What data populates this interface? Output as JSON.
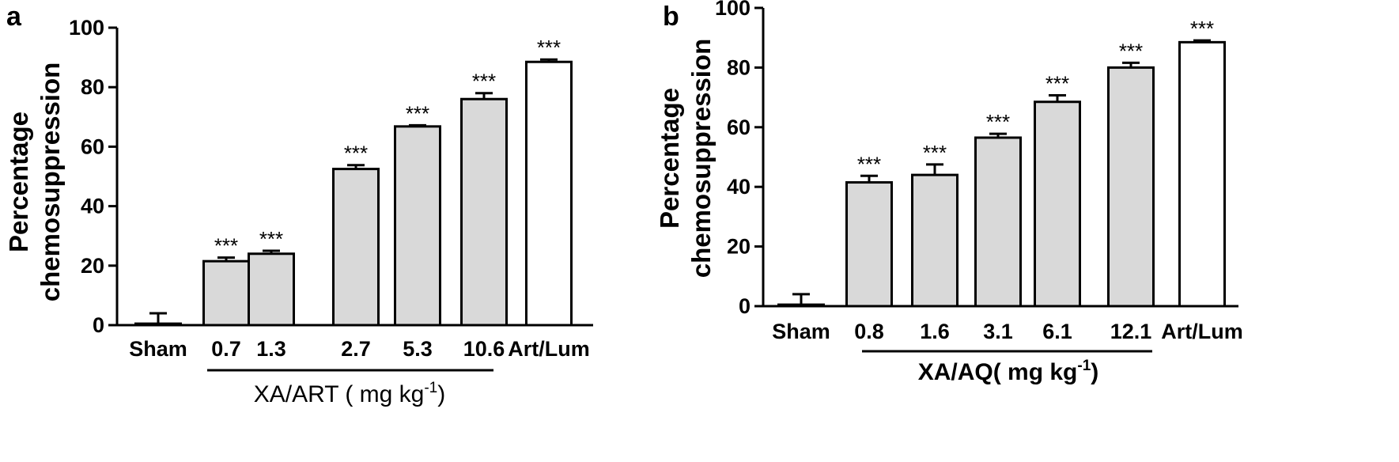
{
  "chart_data": [
    {
      "type": "bar",
      "panel_label": "a",
      "ylabel_line1": "Percentage",
      "ylabel_line2": "chemosuppression",
      "ylim": [
        0,
        100
      ],
      "yticks": [
        0,
        20,
        40,
        60,
        80,
        100
      ],
      "categories": [
        "Sham",
        "0.7",
        "1.3",
        "2.7",
        "5.3",
        "10.6",
        "Art/Lum"
      ],
      "values": [
        0.5,
        21.5,
        24,
        52.5,
        66.8,
        76,
        88.5
      ],
      "errors": [
        3.5,
        1.2,
        1.0,
        1.3,
        0.4,
        2.0,
        0.8
      ],
      "significance": [
        "",
        "***",
        "***",
        "***",
        "***",
        "***",
        "***"
      ],
      "bar_colors": [
        "#ffffff",
        "#d9d9d9",
        "#d9d9d9",
        "#d9d9d9",
        "#d9d9d9",
        "#d9d9d9",
        "#ffffff"
      ],
      "group_label_main": "XA/ART ( mg kg",
      "group_label_sup": "-1",
      "group_label_end": ")"
    },
    {
      "type": "bar",
      "panel_label": "b",
      "ylabel_line1": "Percentage",
      "ylabel_line2": "chemosuppression",
      "ylim": [
        0,
        100
      ],
      "yticks": [
        0,
        20,
        40,
        60,
        80,
        100
      ],
      "categories": [
        "Sham",
        "0.8",
        "1.6",
        "3.1",
        "6.1",
        "12.1",
        "Art/Lum"
      ],
      "values": [
        0.5,
        41.5,
        44,
        56.5,
        68.5,
        80,
        88.5
      ],
      "errors": [
        3.5,
        2.2,
        3.5,
        1.3,
        2.2,
        1.6,
        0.6
      ],
      "significance": [
        "",
        "***",
        "***",
        "***",
        "***",
        "***",
        "***"
      ],
      "bar_colors": [
        "#ffffff",
        "#d9d9d9",
        "#d9d9d9",
        "#d9d9d9",
        "#d9d9d9",
        "#d9d9d9",
        "#ffffff"
      ],
      "group_label_main": "XA/AQ( mg kg",
      "group_label_sup": "-1",
      "group_label_end": ")"
    }
  ]
}
